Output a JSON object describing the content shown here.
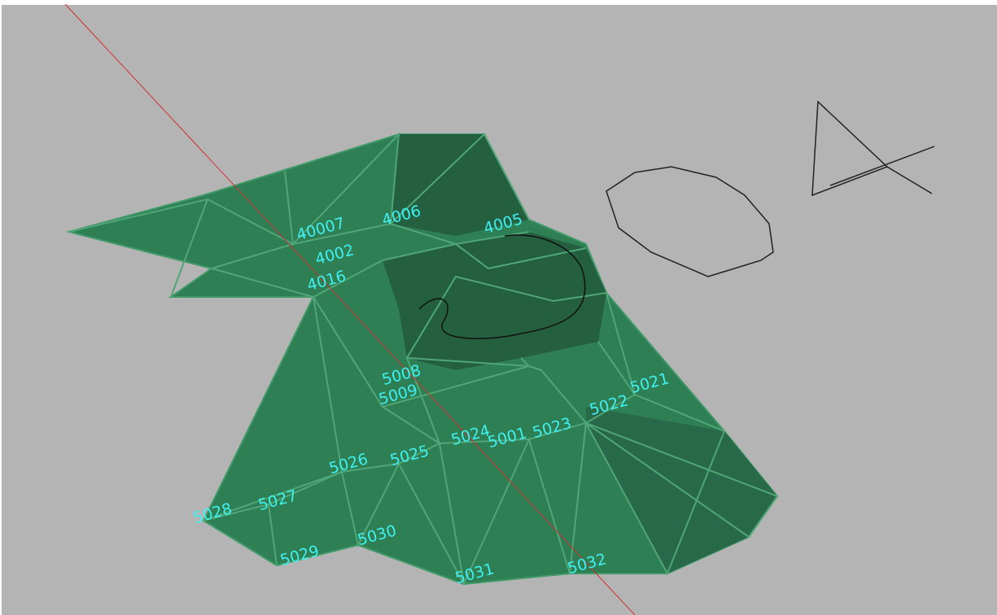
{
  "point_labels": [
    "40007",
    "4006",
    "4005",
    "4002",
    "4016",
    "5008",
    "5009",
    "5026",
    "5025",
    "5024",
    "5001",
    "5023",
    "5022",
    "5021",
    "5027",
    "5028",
    "5029",
    "5030",
    "5031",
    "5032"
  ]
}
